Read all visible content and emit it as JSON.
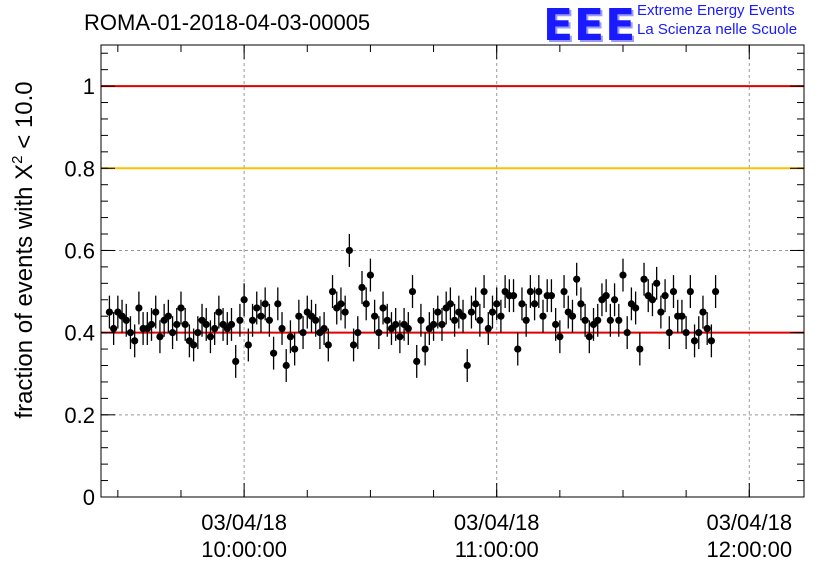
{
  "title": "ROMA-01-2018-04-03-00005",
  "logo": {
    "mark": "EEE",
    "line1": "Extreme Energy Events",
    "line2": "La Scienza nelle Scuole"
  },
  "chart_data": {
    "type": "scatter",
    "ylabel_prefix": "fraction of events with X",
    "ylabel_superscript": "2",
    "ylabel_suffix": " < 10.0",
    "ylim": [
      0,
      1.1
    ],
    "yticks": [
      0,
      0.2,
      0.4,
      0.6,
      0.8,
      1
    ],
    "ytick_labels": [
      "0",
      "0.2",
      "0.4",
      "0.6",
      "0.8",
      "1"
    ],
    "xlim": [
      "2018-04-03 09:26:00",
      "2018-04-03 12:13:00"
    ],
    "xticks": [
      {
        "time": "2018-04-03 10:00:00",
        "date_label": "03/04/18",
        "time_label": "10:00:00"
      },
      {
        "time": "2018-04-03 11:00:00",
        "date_label": "03/04/18",
        "time_label": "11:00:00"
      },
      {
        "time": "2018-04-03 12:00:00",
        "date_label": "03/04/18",
        "time_label": "12:00:00"
      }
    ],
    "grid": true,
    "reference_lines": [
      {
        "y": 1.0,
        "color": "#e00000"
      },
      {
        "y": 0.8,
        "color": "#ffc000"
      },
      {
        "y": 0.4,
        "color": "#e00000"
      }
    ],
    "marker_color": "#000000",
    "x_start": "2018-04-03 09:28:00",
    "x_step_minutes": 1,
    "y_error": 0.04,
    "series": [
      {
        "values": [
          0.45,
          0.41,
          0.45,
          0.44,
          0.43,
          0.4,
          0.38,
          0.46,
          0.41,
          0.41,
          0.42,
          0.45,
          0.39,
          0.43,
          0.44,
          0.4,
          0.42,
          0.46,
          0.42,
          0.38,
          0.37,
          0.4,
          0.43,
          0.42,
          0.39,
          0.41,
          0.45,
          0.42,
          0.41,
          0.42,
          0.33,
          0.43,
          0.48,
          0.37,
          0.43,
          0.46,
          0.44,
          0.47,
          0.43,
          0.35,
          0.47,
          0.41,
          0.32,
          0.39,
          0.36,
          0.44,
          0.4,
          0.45,
          0.44,
          0.43,
          0.4,
          0.41,
          0.37,
          0.5,
          0.46,
          0.47,
          0.45,
          0.6,
          0.37,
          0.4,
          0.51,
          0.47,
          0.54,
          0.44,
          0.4,
          0.46,
          0.43,
          0.41,
          0.42,
          0.39,
          0.42,
          0.41,
          0.5,
          0.33,
          0.43,
          0.36,
          0.41,
          0.42,
          0.45,
          0.42,
          0.46,
          0.47,
          0.43,
          0.45,
          0.44,
          0.32,
          0.45,
          0.47,
          0.43,
          0.5,
          0.41,
          0.45,
          0.47,
          0.44,
          0.5,
          0.49,
          0.49,
          0.36,
          0.47,
          0.43,
          0.5,
          0.47,
          0.5,
          0.44,
          0.49,
          0.49,
          0.42,
          0.39,
          0.5,
          0.45,
          0.44,
          0.53,
          0.47,
          0.43,
          0.39,
          0.42,
          0.43,
          0.48,
          0.49,
          0.43,
          0.48,
          0.43,
          0.54,
          0.4,
          0.47,
          0.46,
          0.36,
          0.53,
          0.49,
          0.48,
          0.52,
          0.45,
          0.49,
          0.4,
          0.5,
          0.44,
          0.44,
          0.4,
          0.5,
          0.38,
          0.4,
          0.45,
          0.41,
          0.38,
          0.5
        ]
      }
    ]
  }
}
